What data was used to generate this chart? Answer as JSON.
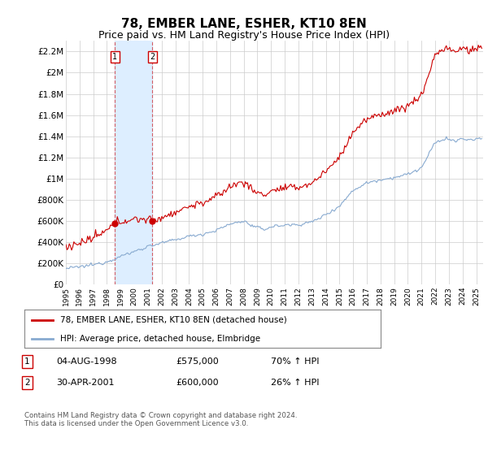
{
  "title": "78, EMBER LANE, ESHER, KT10 8EN",
  "subtitle": "Price paid vs. HM Land Registry's House Price Index (HPI)",
  "title_fontsize": 11,
  "subtitle_fontsize": 9,
  "ylim": [
    0,
    2300000
  ],
  "xlim_start": 1995.0,
  "xlim_end": 2025.5,
  "yticks": [
    0,
    200000,
    400000,
    600000,
    800000,
    1000000,
    1200000,
    1400000,
    1600000,
    1800000,
    2000000,
    2200000
  ],
  "ytick_labels": [
    "£0",
    "£200K",
    "£400K",
    "£600K",
    "£800K",
    "£1M",
    "£1.2M",
    "£1.4M",
    "£1.6M",
    "£1.8M",
    "£2M",
    "£2.2M"
  ],
  "xtick_years": [
    1995,
    1996,
    1997,
    1998,
    1999,
    2000,
    2001,
    2002,
    2003,
    2004,
    2005,
    2006,
    2007,
    2008,
    2009,
    2010,
    2011,
    2012,
    2013,
    2014,
    2015,
    2016,
    2017,
    2018,
    2019,
    2020,
    2021,
    2022,
    2023,
    2024,
    2025
  ],
  "sale1_date": 1998.587,
  "sale1_price": 575000,
  "sale2_date": 2001.329,
  "sale2_price": 600000,
  "property_line_color": "#cc0000",
  "hpi_line_color": "#88aad0",
  "shade_color": "#ddeeff",
  "marker_box_color": "#cc0000",
  "grid_color": "#cccccc",
  "background_color": "#ffffff",
  "legend_label_property": "78, EMBER LANE, ESHER, KT10 8EN (detached house)",
  "legend_label_hpi": "HPI: Average price, detached house, Elmbridge",
  "sale1_date_str": "04-AUG-1998",
  "sale1_price_str": "£575,000",
  "sale1_hpi_str": "70% ↑ HPI",
  "sale2_date_str": "30-APR-2001",
  "sale2_price_str": "£600,000",
  "sale2_hpi_str": "26% ↑ HPI",
  "footnote": "Contains HM Land Registry data © Crown copyright and database right 2024.\nThis data is licensed under the Open Government Licence v3.0."
}
